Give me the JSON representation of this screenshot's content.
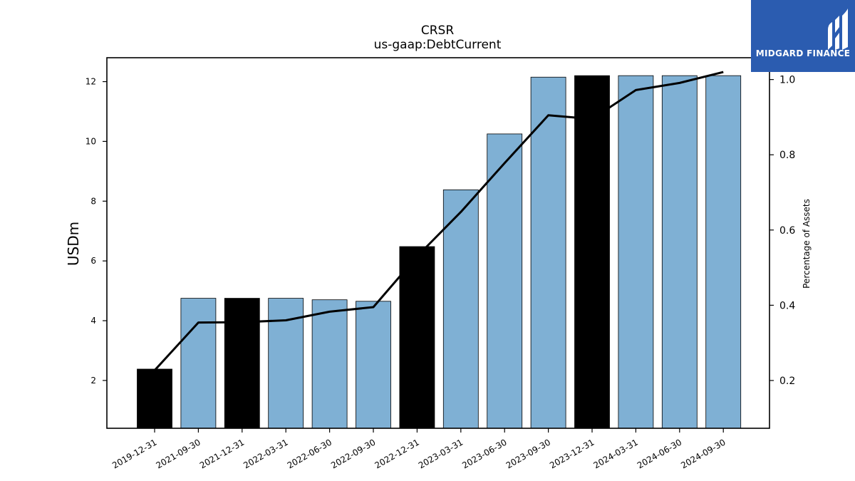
{
  "logo": {
    "text": "MIDGARD FINANCE",
    "icon": "midgard-m-logo-icon",
    "background": "#2b5cb0"
  },
  "chart_data": {
    "type": "bar",
    "title": "CRSR",
    "subtitle": "us-gaap:DebtCurrent",
    "ylabel": "USDm",
    "y2label": "Percentage of Assets",
    "categories": [
      "2019-12-31",
      "2021-09-30",
      "2021-12-31",
      "2022-03-31",
      "2022-06-30",
      "2022-09-30",
      "2022-12-31",
      "2023-03-31",
      "2023-06-30",
      "2023-09-30",
      "2023-12-31",
      "2024-03-31",
      "2024-06-30",
      "2024-09-30"
    ],
    "series": [
      {
        "type": "bar",
        "axis": "left",
        "values": [
          2.38,
          4.75,
          4.75,
          4.75,
          4.7,
          4.65,
          6.48,
          8.38,
          10.25,
          12.15,
          12.2,
          12.2,
          12.2,
          12.2
        ],
        "colors": [
          "#000000",
          "#7fb0d4",
          "#000000",
          "#7fb0d4",
          "#7fb0d4",
          "#7fb0d4",
          "#000000",
          "#7fb0d4",
          "#7fb0d4",
          "#7fb0d4",
          "#000000",
          "#7fb0d4",
          "#7fb0d4",
          "#7fb0d4"
        ]
      },
      {
        "type": "line",
        "axis": "right",
        "color": "#000000",
        "values": [
          0.227,
          0.354,
          0.355,
          0.36,
          0.383,
          0.395,
          0.53,
          0.648,
          0.778,
          0.905,
          0.895,
          0.972,
          0.991,
          1.02
        ]
      }
    ],
    "ylim": [
      0.4,
      12.8
    ],
    "y2lim": [
      0.073,
      1.058
    ],
    "yticks": [
      2,
      4,
      6,
      8,
      10,
      12
    ],
    "y2ticks": [
      0.2,
      0.4,
      0.6,
      0.8,
      1.0
    ],
    "grid": false,
    "legend": "none"
  }
}
